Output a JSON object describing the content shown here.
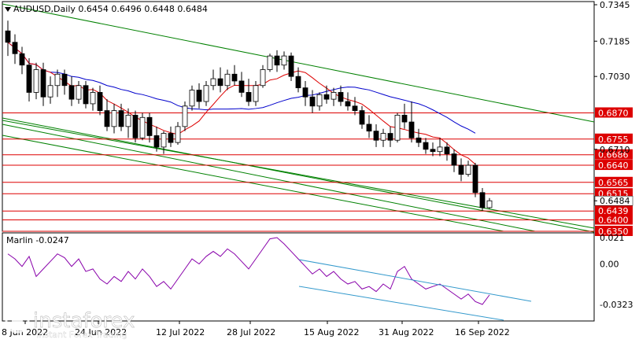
{
  "header": {
    "symbol_line": "AUDUSD,Daily  0.6454 0.6496 0.6448 0.6484"
  },
  "indicator": {
    "label": "Marlin -0.0247",
    "scale": [
      "0.021",
      "0.00",
      "-0.0323"
    ]
  },
  "price_axis": [
    "0.7345",
    "0.7185",
    "0.7030",
    "0.6710",
    "0.6484"
  ],
  "levels": [
    {
      "label": "0.6870",
      "value": 0.687
    },
    {
      "label": "0.6755",
      "value": 0.6755
    },
    {
      "label": "0.6686",
      "value": 0.6686
    },
    {
      "label": "0.6640",
      "value": 0.664
    },
    {
      "label": "0.6565",
      "value": 0.6565
    },
    {
      "label": "0.6515",
      "value": 0.6515
    },
    {
      "label": "0.6439",
      "value": 0.6439
    },
    {
      "label": "0.6400",
      "value": 0.64
    },
    {
      "label": "0.6350",
      "value": 0.635
    }
  ],
  "time_axis": [
    "8 Jun 2022",
    "24 Jun 2022",
    "12 Jul 2022",
    "28 Jul 2022",
    "15 Aug 2022",
    "31 Aug 2022",
    "16 Sep 2022"
  ],
  "watermark": {
    "brand": "instaforex",
    "tagline": "Instant Forex Trading"
  },
  "colors": {
    "level": "#dd0000",
    "channel": "#008000",
    "ma_slow": "#0000cc",
    "ma_fast": "#dd0000",
    "oscillator": "#8800aa",
    "osc_channel": "#3399cc",
    "up_candle": "#ffffff",
    "down_candle": "#000000"
  },
  "chart_data": {
    "type": "candlestick",
    "ylim": [
      0.632,
      0.737
    ],
    "candles": [
      [
        0.723,
        0.7275,
        0.712,
        0.718
      ],
      [
        0.718,
        0.7215,
        0.7085,
        0.713
      ],
      [
        0.713,
        0.716,
        0.704,
        0.708
      ],
      [
        0.708,
        0.711,
        0.692,
        0.696
      ],
      [
        0.696,
        0.709,
        0.693,
        0.706
      ],
      [
        0.706,
        0.709,
        0.69,
        0.694
      ],
      [
        0.694,
        0.703,
        0.691,
        0.699
      ],
      [
        0.699,
        0.706,
        0.694,
        0.704
      ],
      [
        0.704,
        0.706,
        0.695,
        0.699
      ],
      [
        0.699,
        0.703,
        0.69,
        0.693
      ],
      [
        0.693,
        0.701,
        0.691,
        0.699
      ],
      [
        0.699,
        0.701,
        0.689,
        0.691
      ],
      [
        0.691,
        0.698,
        0.688,
        0.696
      ],
      [
        0.696,
        0.699,
        0.686,
        0.688
      ],
      [
        0.688,
        0.693,
        0.679,
        0.681
      ],
      [
        0.681,
        0.691,
        0.678,
        0.688
      ],
      [
        0.688,
        0.691,
        0.679,
        0.681
      ],
      [
        0.681,
        0.689,
        0.676,
        0.686
      ],
      [
        0.686,
        0.688,
        0.674,
        0.676
      ],
      [
        0.676,
        0.687,
        0.675,
        0.685
      ],
      [
        0.685,
        0.687,
        0.674,
        0.677
      ],
      [
        0.677,
        0.681,
        0.67,
        0.672
      ],
      [
        0.672,
        0.679,
        0.669,
        0.678
      ],
      [
        0.678,
        0.681,
        0.672,
        0.674
      ],
      [
        0.674,
        0.683,
        0.673,
        0.681
      ],
      [
        0.681,
        0.692,
        0.679,
        0.69
      ],
      [
        0.69,
        0.699,
        0.688,
        0.697
      ],
      [
        0.697,
        0.7,
        0.689,
        0.692
      ],
      [
        0.692,
        0.701,
        0.69,
        0.699
      ],
      [
        0.699,
        0.706,
        0.697,
        0.702
      ],
      [
        0.702,
        0.707,
        0.696,
        0.699
      ],
      [
        0.699,
        0.706,
        0.697,
        0.704
      ],
      [
        0.704,
        0.708,
        0.699,
        0.701
      ],
      [
        0.701,
        0.705,
        0.694,
        0.696
      ],
      [
        0.696,
        0.702,
        0.69,
        0.692
      ],
      [
        0.692,
        0.701,
        0.69,
        0.699
      ],
      [
        0.699,
        0.708,
        0.698,
        0.706
      ],
      [
        0.706,
        0.713,
        0.705,
        0.712
      ],
      [
        0.712,
        0.7145,
        0.705,
        0.708
      ],
      [
        0.708,
        0.714,
        0.706,
        0.712
      ],
      [
        0.712,
        0.7135,
        0.701,
        0.703
      ],
      [
        0.703,
        0.707,
        0.696,
        0.698
      ],
      [
        0.698,
        0.701,
        0.69,
        0.694
      ],
      [
        0.694,
        0.697,
        0.687,
        0.69
      ],
      [
        0.69,
        0.696,
        0.688,
        0.695
      ],
      [
        0.695,
        0.699,
        0.691,
        0.693
      ],
      [
        0.693,
        0.698,
        0.69,
        0.696
      ],
      [
        0.696,
        0.699,
        0.69,
        0.692
      ],
      [
        0.692,
        0.696,
        0.688,
        0.69
      ],
      [
        0.69,
        0.694,
        0.686,
        0.688
      ],
      [
        0.688,
        0.69,
        0.68,
        0.682
      ],
      [
        0.682,
        0.686,
        0.676,
        0.679
      ],
      [
        0.679,
        0.682,
        0.672,
        0.675
      ],
      [
        0.675,
        0.68,
        0.672,
        0.678
      ],
      [
        0.678,
        0.681,
        0.672,
        0.675
      ],
      [
        0.675,
        0.687,
        0.674,
        0.686
      ],
      [
        0.686,
        0.691,
        0.68,
        0.683
      ],
      [
        0.683,
        0.692,
        0.674,
        0.676
      ],
      [
        0.676,
        0.68,
        0.672,
        0.674
      ],
      [
        0.674,
        0.676,
        0.669,
        0.671
      ],
      [
        0.671,
        0.674,
        0.668,
        0.67
      ],
      [
        0.67,
        0.676,
        0.668,
        0.672
      ],
      [
        0.672,
        0.674,
        0.666,
        0.669
      ],
      [
        0.669,
        0.671,
        0.661,
        0.664
      ],
      [
        0.664,
        0.667,
        0.657,
        0.66
      ],
      [
        0.66,
        0.666,
        0.659,
        0.664
      ],
      [
        0.664,
        0.665,
        0.65,
        0.652
      ],
      [
        0.652,
        0.654,
        0.644,
        0.6454
      ],
      [
        0.6454,
        0.6496,
        0.6448,
        0.6484
      ]
    ],
    "marlin": [
      0.008,
      0.004,
      -0.002,
      0.006,
      -0.01,
      -0.004,
      0.002,
      0.008,
      0.005,
      -0.002,
      0.004,
      -0.006,
      -0.004,
      -0.012,
      -0.016,
      -0.01,
      -0.014,
      -0.006,
      -0.012,
      -0.004,
      -0.01,
      -0.018,
      -0.014,
      -0.02,
      -0.012,
      -0.004,
      0.004,
      0.0,
      0.006,
      0.01,
      0.006,
      0.012,
      0.008,
      0.002,
      -0.004,
      0.004,
      0.012,
      0.02,
      0.021,
      0.016,
      0.01,
      0.004,
      -0.002,
      -0.008,
      -0.004,
      -0.01,
      -0.006,
      -0.012,
      -0.016,
      -0.014,
      -0.02,
      -0.018,
      -0.022,
      -0.016,
      -0.02,
      -0.006,
      -0.002,
      -0.012,
      -0.016,
      -0.02,
      -0.018,
      -0.016,
      -0.02,
      -0.024,
      -0.028,
      -0.024,
      -0.03,
      -0.0323,
      -0.0247
    ]
  }
}
